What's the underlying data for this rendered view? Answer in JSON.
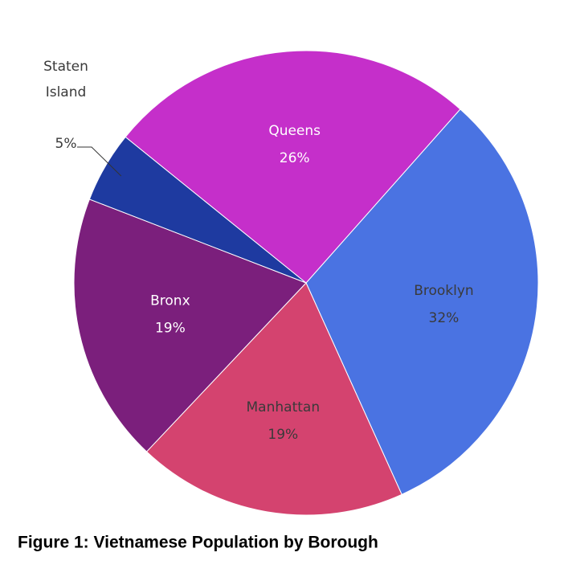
{
  "chart_data": {
    "type": "pie",
    "title": "Figure 1: Vietnamese Population by Borough",
    "categories": [
      "Brooklyn",
      "Manhattan",
      "Bronx",
      "Staten Island",
      "Queens"
    ],
    "values": [
      32,
      19,
      19,
      5,
      26
    ],
    "value_labels": [
      "32%",
      "19%",
      "19%",
      "5%",
      "26%"
    ],
    "colors": [
      "#4a73e2",
      "#d4436f",
      "#7b1f7c",
      "#1e3aa0",
      "#c52fca"
    ]
  }
}
